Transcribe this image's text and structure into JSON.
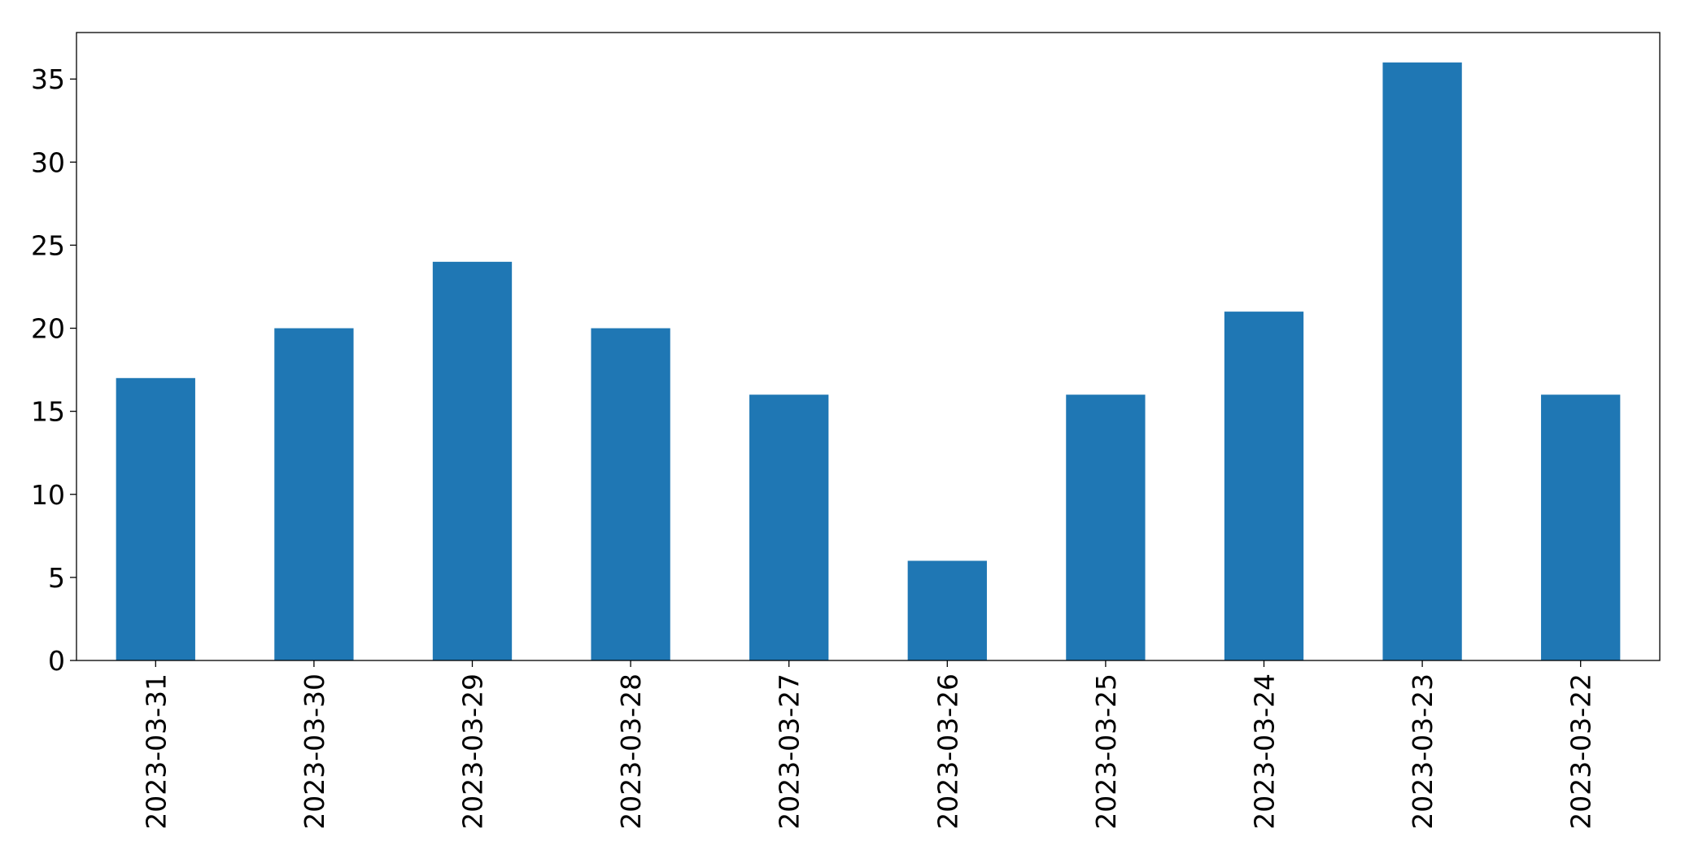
{
  "chart_data": {
    "type": "bar",
    "categories": [
      "2023-03-31",
      "2023-03-30",
      "2023-03-29",
      "2023-03-28",
      "2023-03-27",
      "2023-03-26",
      "2023-03-25",
      "2023-03-24",
      "2023-03-23",
      "2023-03-22"
    ],
    "values": [
      17,
      20,
      24,
      20,
      16,
      6,
      16,
      21,
      36,
      16
    ],
    "color": "#1f77b4",
    "ylim": [
      0,
      37.8
    ],
    "yticks": [
      0,
      5,
      10,
      15,
      20,
      25,
      30,
      35
    ],
    "grid": false
  }
}
